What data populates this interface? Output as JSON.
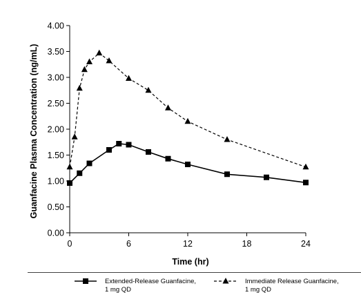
{
  "chart_data": {
    "type": "line",
    "title": "",
    "xlabel": "Time (hr)",
    "ylabel": "Guanfacine Plasma Concentration (ng/mL)",
    "xlim": [
      0,
      24
    ],
    "ylim": [
      0,
      4
    ],
    "x_ticks": [
      "0",
      "6",
      "12",
      "18",
      "24"
    ],
    "y_ticks": [
      "0.00",
      "0.50",
      "1.00",
      "1.50",
      "2.00",
      "2.50",
      "3.00",
      "3.50",
      "4.00"
    ],
    "grid": false,
    "legend_position": "bottom",
    "series": [
      {
        "name": "Extended-Release Guanfacine, 1 mg QD",
        "marker": "square",
        "line_style": "solid",
        "color": "#000000",
        "points": [
          {
            "x": 0,
            "y": 0.96
          },
          {
            "x": 1,
            "y": 1.15
          },
          {
            "x": 2,
            "y": 1.34
          },
          {
            "x": 4,
            "y": 1.6
          },
          {
            "x": 5,
            "y": 1.72
          },
          {
            "x": 6,
            "y": 1.7
          },
          {
            "x": 8,
            "y": 1.56
          },
          {
            "x": 10,
            "y": 1.43
          },
          {
            "x": 12,
            "y": 1.32
          },
          {
            "x": 16,
            "y": 1.13
          },
          {
            "x": 20,
            "y": 1.07
          },
          {
            "x": 24,
            "y": 0.97
          }
        ]
      },
      {
        "name": "Immediate Release Guanfacine, 1 mg QD",
        "marker": "triangle",
        "line_style": "dashed",
        "color": "#000000",
        "points": [
          {
            "x": 0,
            "y": 1.27
          },
          {
            "x": 0.5,
            "y": 1.85
          },
          {
            "x": 1,
            "y": 2.79
          },
          {
            "x": 1.5,
            "y": 3.15
          },
          {
            "x": 2,
            "y": 3.3
          },
          {
            "x": 3,
            "y": 3.47
          },
          {
            "x": 4,
            "y": 3.32
          },
          {
            "x": 6,
            "y": 2.98
          },
          {
            "x": 8,
            "y": 2.75
          },
          {
            "x": 10,
            "y": 2.41
          },
          {
            "x": 12,
            "y": 2.15
          },
          {
            "x": 16,
            "y": 1.8
          },
          {
            "x": 24,
            "y": 1.27
          }
        ]
      }
    ]
  },
  "legend": {
    "items": [
      {
        "line1": "Extended-Release Guanfacine,",
        "line2": "1 mg QD"
      },
      {
        "line1": "Immediate Release Guanfacine,",
        "line2": "1 mg QD"
      }
    ]
  }
}
